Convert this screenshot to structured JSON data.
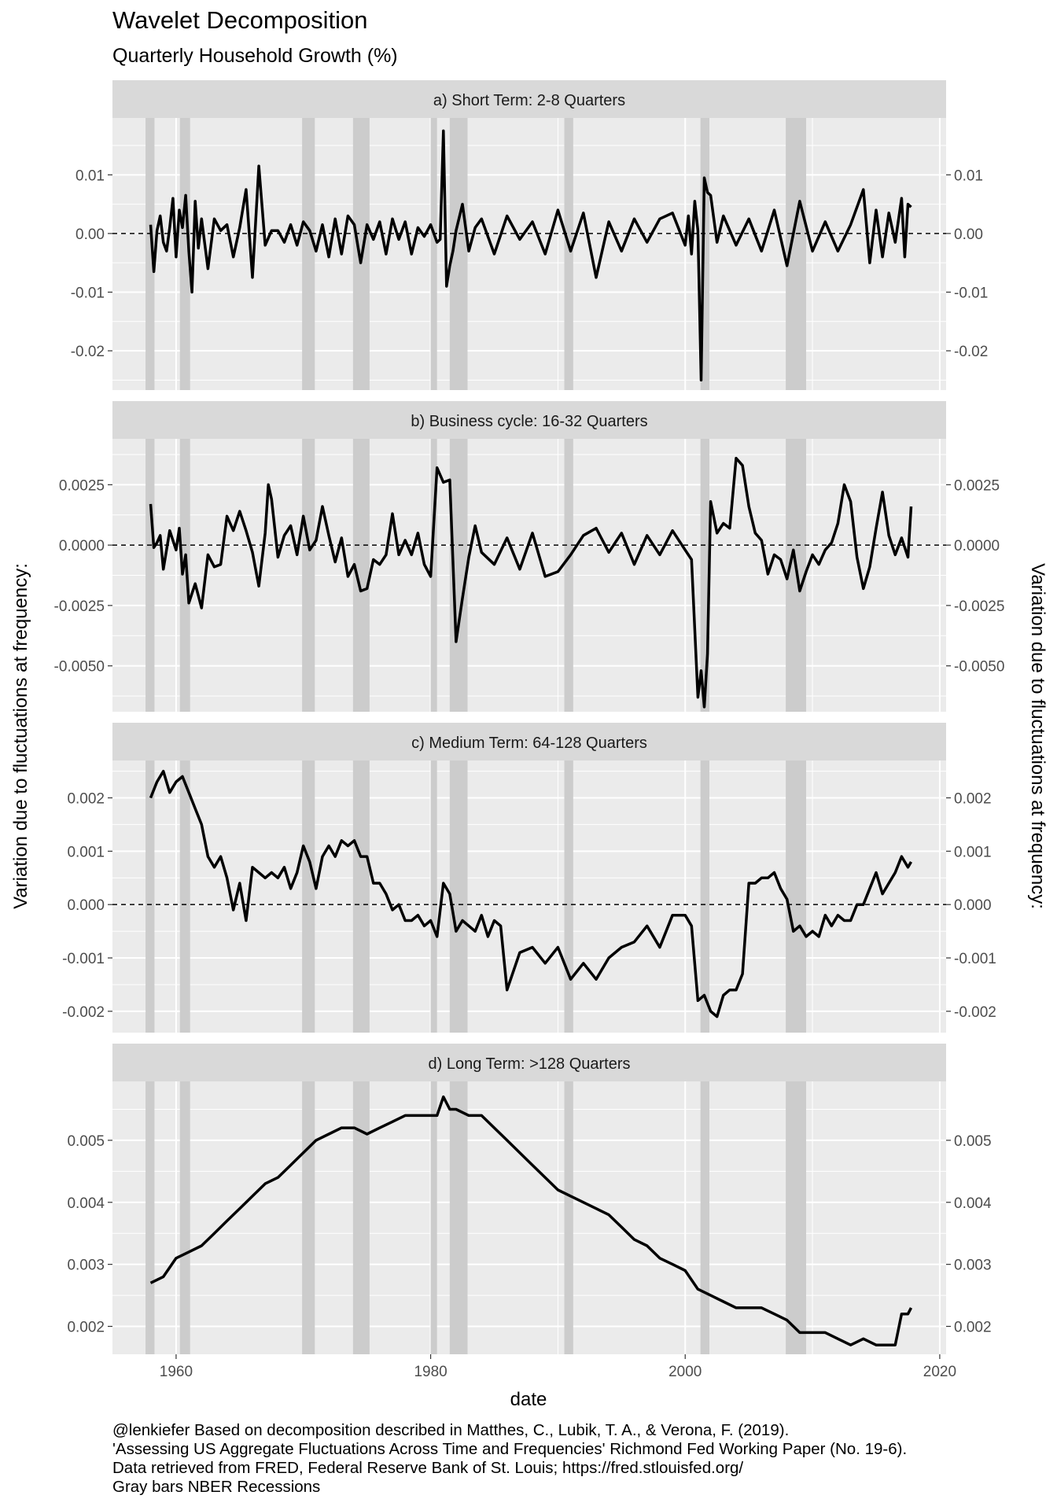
{
  "title": "Wavelet Decomposition",
  "subtitle": "Quarterly Household Growth (%)",
  "caption": [
    "@lenkiefer Based on decomposition described in Matthes, C., Lubik, T. A., & Verona, F. (2019).",
    "'Assessing US Aggregate Fluctuations Across Time and Frequencies' Richmond Fed Working Paper (No. 19-6).",
    "Data retrieved from FRED, Federal Reserve Bank of St. Louis; https://fred.stlouisfed.org/",
    "Gray bars NBER Recessions"
  ],
  "colors": {
    "panel": "#ebebeb",
    "strip": "#d9d9d9",
    "recession": "#cccccc",
    "grid": "#ffffff",
    "line": "#000000"
  },
  "chart_data": {
    "type": "line",
    "xlabel": "date",
    "ylabel": "Variation due to fluctuations at frequency:",
    "ylabel_right": "Variation due to fluctuations at frequency:",
    "x_range": [
      1955,
      2020.5
    ],
    "x_ticks": [
      1960,
      1980,
      2000,
      2020
    ],
    "x_tick_labels": [
      "1960",
      "1980",
      "2000",
      "2020"
    ],
    "recessions": [
      [
        1957.6,
        1958.3
      ],
      [
        1960.3,
        1961.1
      ],
      [
        1969.9,
        1970.9
      ],
      [
        1973.9,
        1975.2
      ],
      [
        1980.0,
        1980.5
      ],
      [
        1981.5,
        1982.9
      ],
      [
        1990.5,
        1991.2
      ],
      [
        2001.2,
        2001.9
      ],
      [
        2007.9,
        2009.5
      ]
    ],
    "panels": [
      {
        "label": "a) Short Term: 2-8 Quarters",
        "ylim": [
          -0.0267,
          0.0197
        ],
        "y_ticks": [
          0.01,
          0.0,
          -0.01,
          -0.02
        ],
        "y_tick_labels": [
          "0.01",
          "0.00",
          "-0.01",
          "-0.02"
        ],
        "zero_line": true,
        "series": {
          "x": [
            1958.0,
            1958.25,
            1958.5,
            1958.75,
            1959.0,
            1959.25,
            1959.5,
            1959.75,
            1960.0,
            1960.25,
            1960.5,
            1960.75,
            1961.0,
            1961.25,
            1961.5,
            1961.75,
            1962.0,
            1962.5,
            1963.0,
            1963.5,
            1964.0,
            1964.5,
            1965.0,
            1965.5,
            1966.0,
            1966.5,
            1967.0,
            1967.5,
            1968.0,
            1968.5,
            1969.0,
            1969.5,
            1970.0,
            1970.5,
            1971.0,
            1971.5,
            1972.0,
            1972.5,
            1973.0,
            1973.5,
            1974.0,
            1974.5,
            1975.0,
            1975.5,
            1976.0,
            1976.5,
            1977.0,
            1977.5,
            1978.0,
            1978.5,
            1979.0,
            1979.5,
            1980.0,
            1980.5,
            1980.75,
            1981.0,
            1981.25,
            1981.5,
            1981.75,
            1982.0,
            1982.5,
            1983.0,
            1983.5,
            1984.0,
            1985.0,
            1986.0,
            1987.0,
            1988.0,
            1989.0,
            1990.0,
            1991.0,
            1992.0,
            1993.0,
            1994.0,
            1995.0,
            1996.0,
            1997.0,
            1998.0,
            1999.0,
            2000.0,
            2000.25,
            2000.5,
            2000.75,
            2001.0,
            2001.25,
            2001.5,
            2001.75,
            2002.0,
            2002.5,
            2003.0,
            2004.0,
            2005.0,
            2006.0,
            2007.0,
            2008.0,
            2009.0,
            2010.0,
            2011.0,
            2012.0,
            2013.0,
            2014.0,
            2014.5,
            2015.0,
            2015.5,
            2016.0,
            2016.5,
            2017.0,
            2017.25,
            2017.5,
            2017.75
          ],
          "y": [
            0.0015,
            -0.0065,
            0.0005,
            0.003,
            -0.0015,
            -0.003,
            0.001,
            0.006,
            -0.004,
            0.004,
            0.001,
            0.0065,
            -0.003,
            -0.01,
            0.0055,
            -0.0025,
            0.0025,
            -0.006,
            0.0025,
            0.0005,
            0.0015,
            -0.004,
            0.001,
            0.0075,
            -0.0075,
            0.0115,
            -0.002,
            0.0005,
            0.0005,
            -0.0015,
            0.0015,
            -0.002,
            0.002,
            0.0005,
            -0.003,
            0.0015,
            -0.004,
            0.0025,
            -0.0035,
            0.003,
            0.0015,
            -0.005,
            0.0015,
            -0.001,
            0.002,
            -0.0035,
            0.0025,
            -0.001,
            0.002,
            -0.0035,
            0.001,
            -0.0005,
            0.0015,
            -0.0015,
            -0.001,
            0.0175,
            -0.009,
            -0.0055,
            -0.003,
            0.0005,
            0.005,
            -0.003,
            0.001,
            0.0025,
            -0.0035,
            0.003,
            -0.001,
            0.002,
            -0.0035,
            0.004,
            -0.003,
            0.0035,
            -0.0075,
            0.002,
            -0.003,
            0.0025,
            -0.0015,
            0.0025,
            0.0035,
            -0.002,
            0.003,
            -0.0035,
            0.0055,
            0.0005,
            -0.025,
            0.0095,
            0.007,
            0.0065,
            -0.0015,
            0.003,
            -0.002,
            0.0025,
            -0.003,
            0.004,
            -0.0055,
            0.0055,
            -0.003,
            0.002,
            -0.003,
            0.0015,
            0.0075,
            -0.005,
            0.004,
            -0.004,
            0.0035,
            -0.0015,
            0.006,
            -0.004,
            0.005,
            0.0045
          ]
        }
      },
      {
        "label": "b) Business cycle: 16-32 Quarters",
        "ylim": [
          -0.0069,
          0.0044
        ],
        "y_ticks": [
          0.0025,
          0.0,
          -0.0025,
          -0.005
        ],
        "y_tick_labels": [
          "0.0025",
          "0.0000",
          "-0.0025",
          "-0.0050"
        ],
        "zero_line": true,
        "series": {
          "x": [
            1958.0,
            1958.25,
            1958.5,
            1958.75,
            1959.0,
            1959.5,
            1960.0,
            1960.25,
            1960.5,
            1960.75,
            1961.0,
            1961.5,
            1962.0,
            1962.5,
            1963.0,
            1963.5,
            1964.0,
            1964.5,
            1965.0,
            1965.5,
            1966.0,
            1966.5,
            1967.0,
            1967.25,
            1967.5,
            1968.0,
            1968.5,
            1969.0,
            1969.5,
            1970.0,
            1970.5,
            1971.0,
            1971.5,
            1972.0,
            1972.5,
            1973.0,
            1973.5,
            1974.0,
            1974.5,
            1975.0,
            1975.5,
            1976.0,
            1976.5,
            1977.0,
            1977.5,
            1978.0,
            1978.5,
            1979.0,
            1979.5,
            1980.0,
            1980.5,
            1981.0,
            1981.5,
            1982.0,
            1982.5,
            1983.0,
            1983.5,
            1984.0,
            1985.0,
            1986.0,
            1987.0,
            1988.0,
            1989.0,
            1990.0,
            1991.0,
            1992.0,
            1993.0,
            1994.0,
            1995.0,
            1996.0,
            1997.0,
            1998.0,
            1999.0,
            2000.0,
            2000.5,
            2001.0,
            2001.25,
            2001.5,
            2001.75,
            2002.0,
            2002.5,
            2003.0,
            2003.5,
            2004.0,
            2004.5,
            2005.0,
            2005.5,
            2006.0,
            2006.5,
            2007.0,
            2007.5,
            2008.0,
            2008.5,
            2009.0,
            2009.5,
            2010.0,
            2010.5,
            2011.0,
            2011.5,
            2012.0,
            2012.5,
            2013.0,
            2013.5,
            2014.0,
            2014.5,
            2015.0,
            2015.5,
            2016.0,
            2016.5,
            2017.0,
            2017.5,
            2017.75
          ],
          "y": [
            0.0017,
            -0.0001,
            0.0001,
            0.0004,
            -0.001,
            0.0006,
            -0.0002,
            0.0007,
            -0.0012,
            -0.0004,
            -0.0024,
            -0.0016,
            -0.0026,
            -0.0004,
            -0.0009,
            -0.0008,
            0.0012,
            0.0006,
            0.0014,
            0.0006,
            -0.0003,
            -0.0017,
            0.0005,
            0.0025,
            0.0019,
            -0.0005,
            0.0004,
            0.0008,
            -0.0004,
            0.0012,
            -0.0002,
            0.0002,
            0.0016,
            0.0004,
            -0.0007,
            0.0003,
            -0.0013,
            -0.0008,
            -0.0019,
            -0.0018,
            -0.0006,
            -0.0008,
            -0.0004,
            0.0013,
            -0.0004,
            0.0002,
            -0.0004,
            0.0005,
            -0.0008,
            -0.0013,
            0.0032,
            0.0026,
            0.0027,
            -0.004,
            -0.0022,
            -0.0005,
            0.0008,
            -0.0003,
            -0.0008,
            0.0003,
            -0.001,
            0.0005,
            -0.0013,
            -0.0011,
            -0.0004,
            0.0004,
            0.0007,
            -0.0003,
            0.0005,
            -0.0008,
            0.0004,
            -0.0004,
            0.0006,
            -0.0002,
            -0.0006,
            -0.0063,
            -0.0052,
            -0.0067,
            -0.0045,
            0.0018,
            0.0005,
            0.0009,
            0.0007,
            0.0036,
            0.0033,
            0.0016,
            0.0005,
            0.0002,
            -0.0012,
            -0.0004,
            -0.0006,
            -0.0014,
            -0.0002,
            -0.0019,
            -0.0011,
            -0.0004,
            -0.0008,
            -0.0002,
            0.0001,
            0.0009,
            0.0025,
            0.0018,
            -0.0005,
            -0.0018,
            -0.0009,
            0.0007,
            0.0022,
            0.0004,
            -0.0004,
            0.0003,
            -0.0005,
            0.0016
          ]
        }
      },
      {
        "label": "c) Medium Term: 64-128 Quarters",
        "ylim": [
          -0.0024,
          0.0027
        ],
        "y_ticks": [
          0.002,
          0.001,
          0.0,
          -0.001,
          -0.002
        ],
        "y_tick_labels": [
          "0.002",
          "0.001",
          "0.000",
          "-0.001",
          "-0.002"
        ],
        "zero_line": true,
        "series": {
          "x": [
            1958.0,
            1958.5,
            1959.0,
            1959.5,
            1960.0,
            1960.5,
            1961.0,
            1961.5,
            1962.0,
            1962.5,
            1963.0,
            1963.5,
            1964.0,
            1964.5,
            1965.0,
            1965.5,
            1966.0,
            1966.5,
            1967.0,
            1967.5,
            1968.0,
            1968.5,
            1969.0,
            1969.5,
            1970.0,
            1970.5,
            1971.0,
            1971.5,
            1972.0,
            1972.5,
            1973.0,
            1973.5,
            1974.0,
            1974.5,
            1975.0,
            1975.5,
            1976.0,
            1976.5,
            1977.0,
            1977.5,
            1978.0,
            1978.5,
            1979.0,
            1979.5,
            1980.0,
            1980.5,
            1981.0,
            1981.5,
            1982.0,
            1982.5,
            1983.0,
            1983.5,
            1984.0,
            1984.5,
            1985.0,
            1985.5,
            1986.0,
            1987.0,
            1988.0,
            1989.0,
            1990.0,
            1991.0,
            1992.0,
            1993.0,
            1994.0,
            1995.0,
            1996.0,
            1997.0,
            1998.0,
            1999.0,
            2000.0,
            2000.5,
            2001.0,
            2001.5,
            2002.0,
            2002.5,
            2003.0,
            2003.5,
            2004.0,
            2004.5,
            2005.0,
            2005.5,
            2006.0,
            2006.5,
            2007.0,
            2007.5,
            2008.0,
            2008.5,
            2009.0,
            2009.5,
            2010.0,
            2010.5,
            2011.0,
            2011.5,
            2012.0,
            2012.5,
            2013.0,
            2013.5,
            2014.0,
            2014.5,
            2015.0,
            2015.5,
            2016.0,
            2016.5,
            2017.0,
            2017.5,
            2017.75
          ],
          "y": [
            0.002,
            0.0023,
            0.0025,
            0.0021,
            0.0023,
            0.0024,
            0.0021,
            0.0018,
            0.0015,
            0.0009,
            0.0007,
            0.0009,
            0.0005,
            -0.0001,
            0.0004,
            -0.0003,
            0.0007,
            0.0006,
            0.0005,
            0.0006,
            0.0005,
            0.0007,
            0.0003,
            0.0006,
            0.0011,
            0.0008,
            0.0003,
            0.0009,
            0.0011,
            0.0009,
            0.0012,
            0.0011,
            0.0012,
            0.0009,
            0.0009,
            0.0004,
            0.0004,
            0.0002,
            -0.0001,
            0.0,
            -0.0003,
            -0.0003,
            -0.0002,
            -0.0004,
            -0.0003,
            -0.0006,
            0.0004,
            0.0002,
            -0.0005,
            -0.0003,
            -0.0004,
            -0.0005,
            -0.0002,
            -0.0006,
            -0.0003,
            -0.0004,
            -0.0016,
            -0.0009,
            -0.0008,
            -0.0011,
            -0.0008,
            -0.0014,
            -0.0011,
            -0.0014,
            -0.001,
            -0.0008,
            -0.0007,
            -0.0004,
            -0.0008,
            -0.0002,
            -0.0002,
            -0.0004,
            -0.0018,
            -0.0017,
            -0.002,
            -0.0021,
            -0.0017,
            -0.0016,
            -0.0016,
            -0.0013,
            0.0004,
            0.0004,
            0.0005,
            0.0005,
            0.0006,
            0.0003,
            0.0001,
            -0.0005,
            -0.0004,
            -0.0006,
            -0.0005,
            -0.0006,
            -0.0002,
            -0.0004,
            -0.0002,
            -0.0003,
            -0.0003,
            0.0,
            0.0,
            0.0003,
            0.0006,
            0.0002,
            0.0004,
            0.0006,
            0.0009,
            0.0007,
            0.0008
          ]
        }
      },
      {
        "label": "d) Long Term: >128 Quarters",
        "ylim": [
          0.00155,
          0.00595
        ],
        "y_ticks": [
          0.005,
          0.004,
          0.003,
          0.002
        ],
        "y_tick_labels": [
          "0.005",
          "0.004",
          "0.003",
          "0.002"
        ],
        "zero_line": false,
        "series": {
          "x": [
            1958.0,
            1959.0,
            1960.0,
            1961.0,
            1962.0,
            1963.0,
            1964.0,
            1965.0,
            1966.0,
            1967.0,
            1968.0,
            1969.0,
            1970.0,
            1971.0,
            1972.0,
            1973.0,
            1974.0,
            1975.0,
            1976.0,
            1977.0,
            1978.0,
            1979.0,
            1980.0,
            1980.5,
            1981.0,
            1981.5,
            1982.0,
            1983.0,
            1984.0,
            1985.0,
            1986.0,
            1987.0,
            1988.0,
            1989.0,
            1990.0,
            1991.0,
            1992.0,
            1993.0,
            1994.0,
            1995.0,
            1996.0,
            1997.0,
            1998.0,
            1999.0,
            2000.0,
            2001.0,
            2002.0,
            2003.0,
            2004.0,
            2005.0,
            2006.0,
            2007.0,
            2008.0,
            2009.0,
            2010.0,
            2011.0,
            2012.0,
            2013.0,
            2014.0,
            2015.0,
            2016.0,
            2016.5,
            2017.0,
            2017.5,
            2017.75
          ],
          "y": [
            0.0027,
            0.0028,
            0.0031,
            0.0032,
            0.0033,
            0.0035,
            0.0037,
            0.0039,
            0.0041,
            0.0043,
            0.0044,
            0.0046,
            0.0048,
            0.005,
            0.0051,
            0.0052,
            0.0052,
            0.0051,
            0.0052,
            0.0053,
            0.0054,
            0.0054,
            0.0054,
            0.0054,
            0.0057,
            0.0055,
            0.0055,
            0.0054,
            0.0054,
            0.0052,
            0.005,
            0.0048,
            0.0046,
            0.0044,
            0.0042,
            0.0041,
            0.004,
            0.0039,
            0.0038,
            0.0036,
            0.0034,
            0.0033,
            0.0031,
            0.003,
            0.0029,
            0.0026,
            0.0025,
            0.0024,
            0.0023,
            0.0023,
            0.0023,
            0.0022,
            0.0021,
            0.0019,
            0.0019,
            0.0019,
            0.0018,
            0.0017,
            0.0018,
            0.0017,
            0.0017,
            0.0017,
            0.0022,
            0.0022,
            0.0023
          ]
        }
      }
    ]
  }
}
